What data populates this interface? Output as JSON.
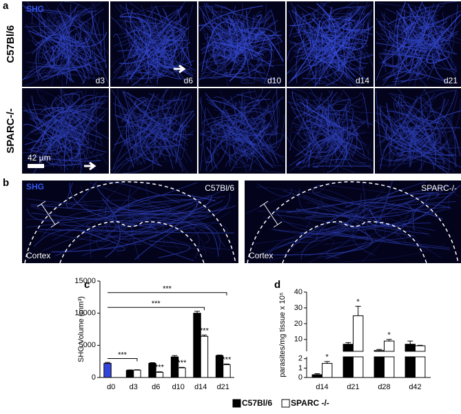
{
  "panel_a": {
    "label": "a",
    "channel": "SHG",
    "rows": [
      "C57Bl/6",
      "SPARC-/-"
    ],
    "days": [
      "d3",
      "d6",
      "d10",
      "d14",
      "d21"
    ],
    "scale_bar": "42 µm"
  },
  "panel_b": {
    "label": "b",
    "channel": "SHG",
    "images": [
      {
        "strain": "C57Bl/6",
        "region": "Cortex"
      },
      {
        "strain": "SPARC-/-",
        "region": "Cortex"
      }
    ]
  },
  "chart_data": [
    {
      "type": "bar",
      "label": "c",
      "ylabel": "SHG Volume (mm³)",
      "categories": [
        "d0",
        "d3",
        "d6",
        "d10",
        "d14",
        "d21"
      ],
      "series": [
        {
          "name": "C57Bl/6",
          "color": "#000000",
          "colors": [
            "#3344dd",
            "#000000",
            "#000000",
            "#000000",
            "#000000",
            "#000000"
          ],
          "values": [
            2200,
            1100,
            2200,
            3200,
            10000,
            3400
          ],
          "errors": [
            150,
            80,
            100,
            200,
            300,
            100
          ]
        },
        {
          "name": "SPARC -/-",
          "color": "#ffffff",
          "values": [
            null,
            1150,
            800,
            1500,
            6400,
            2000
          ],
          "errors": [
            null,
            50,
            80,
            80,
            200,
            100
          ]
        }
      ],
      "ylim": [
        0,
        15000
      ],
      "yticks": [
        0,
        5000,
        10000,
        15000
      ],
      "brackets": [
        {
          "from": 0,
          "to": 1,
          "text": "***"
        },
        {
          "from": 0,
          "to": 4,
          "text": "***"
        },
        {
          "from": 0,
          "to": 5,
          "text": "***"
        }
      ],
      "bar_annotations": [
        {
          "series": 1,
          "index": 2,
          "text": "***"
        },
        {
          "series": 1,
          "index": 3,
          "text": "***"
        },
        {
          "series": 1,
          "index": 4,
          "text": "***"
        },
        {
          "series": 1,
          "index": 5,
          "text": "***"
        }
      ]
    },
    {
      "type": "broken-bar",
      "label": "d",
      "ylabel": "parasites/mg tissue x 10⁵",
      "categories": [
        "d14",
        "d21",
        "d28",
        "d42"
      ],
      "series": [
        {
          "name": "C57Bl/6",
          "color": "#000000",
          "values": [
            0.3,
            7,
            3,
            7
          ],
          "errors": [
            0.1,
            1,
            0.7,
            2
          ]
        },
        {
          "name": "SPARC -/-",
          "color": "#ffffff",
          "values": [
            1.5,
            25,
            9,
            6
          ],
          "errors": [
            0.2,
            6,
            1,
            0.3
          ]
        }
      ],
      "ylim_lower": [
        0,
        2.2
      ],
      "yticks_lower": [
        0,
        1,
        2
      ],
      "ylim_upper": [
        2.5,
        40
      ],
      "yticks_upper": [
        10,
        20,
        30,
        40
      ],
      "bar_annotations": [
        {
          "series": 1,
          "index": 0,
          "text": "*"
        },
        {
          "series": 1,
          "index": 1,
          "text": "*"
        },
        {
          "series": 1,
          "index": 2,
          "text": "*"
        }
      ]
    }
  ]
}
